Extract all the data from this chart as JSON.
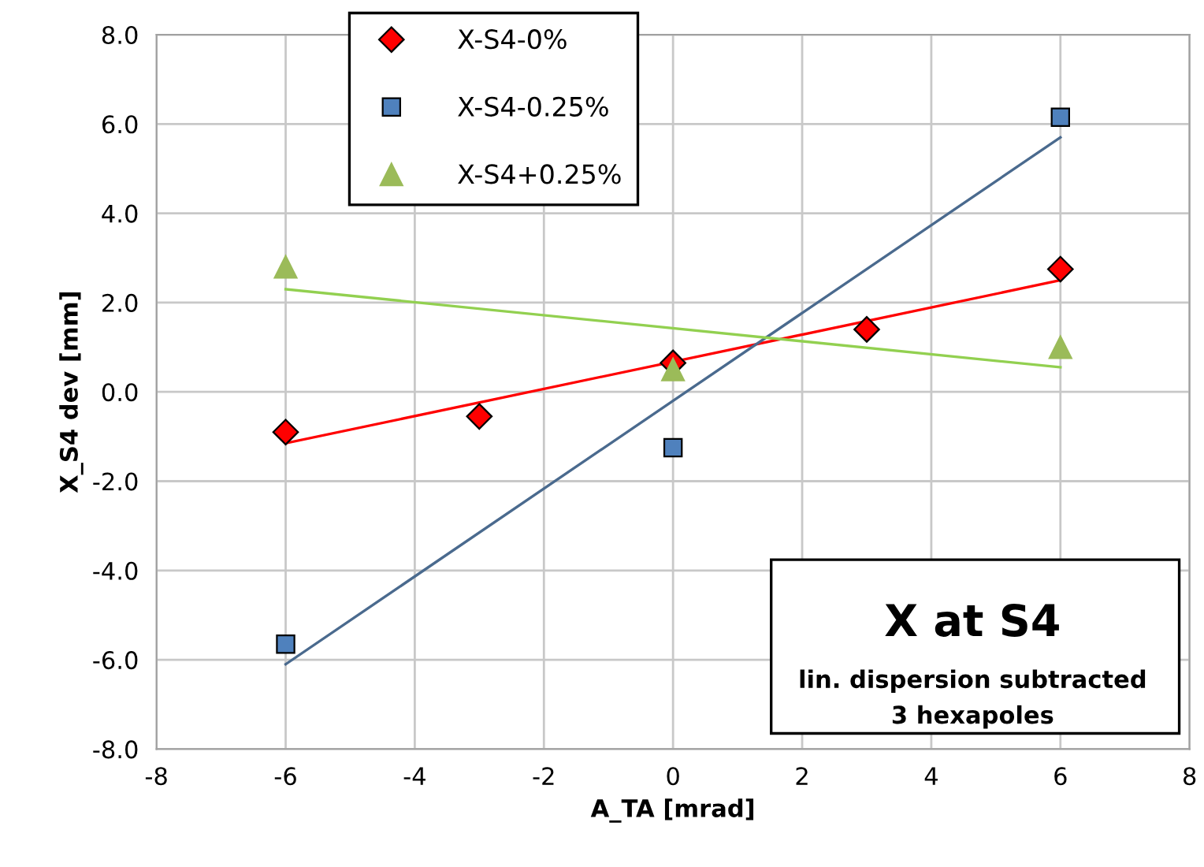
{
  "chart_data": {
    "type": "scatter",
    "title": "X at S4",
    "annotations": [
      "lin. dispersion subtracted",
      "3 hexapoles"
    ],
    "xlabel": "A_TA [mrad]",
    "ylabel": "X_S4 dev [mm]",
    "series": [
      {
        "name": "X-S4-0%",
        "marker": "diamond",
        "color": "#ff0000",
        "x": [
          -6,
          -3,
          0,
          3,
          6
        ],
        "values": [
          -0.9,
          -0.55,
          0.65,
          1.4,
          2.75
        ]
      },
      {
        "name": "X-S4-0.25%",
        "marker": "square",
        "color": "#4f81bd",
        "x": [
          -6,
          0,
          6
        ],
        "values": [
          -5.65,
          -1.25,
          6.15
        ]
      },
      {
        "name": "X-S4+0.25%",
        "marker": "triangle",
        "color": "#9bbb59",
        "x": [
          -6,
          0,
          6
        ],
        "values": [
          2.8,
          0.5,
          1.0
        ]
      },
      {
        "type": "line",
        "color": "#ff0000",
        "x": [
          -6,
          6
        ],
        "values": [
          -1.15,
          2.5
        ]
      },
      {
        "type": "line",
        "color": "#4a6a8e",
        "x": [
          -6,
          6
        ],
        "values": [
          -6.1,
          5.7
        ]
      },
      {
        "type": "line",
        "color": "#92d050",
        "x": [
          -6,
          6
        ],
        "values": [
          2.3,
          0.55
        ]
      }
    ],
    "xlim": [
      -8,
      8
    ],
    "xticks": [
      -8,
      -6,
      -4,
      -2,
      0,
      2,
      4,
      6,
      8
    ],
    "ylim": [
      -8,
      8
    ],
    "yticks": [
      {
        "value": -8,
        "label": "-8.0"
      },
      {
        "value": -6,
        "label": "-6.0"
      },
      {
        "value": -4,
        "label": "-4.0"
      },
      {
        "value": -2,
        "label": "-2.0"
      },
      {
        "value": 0,
        "label": "0.0"
      },
      {
        "value": 2,
        "label": "2.0"
      },
      {
        "value": 4,
        "label": "4.0"
      },
      {
        "value": 6,
        "label": "6.0"
      },
      {
        "value": 8,
        "label": "8.0"
      }
    ],
    "grid": true,
    "legend": "top"
  }
}
